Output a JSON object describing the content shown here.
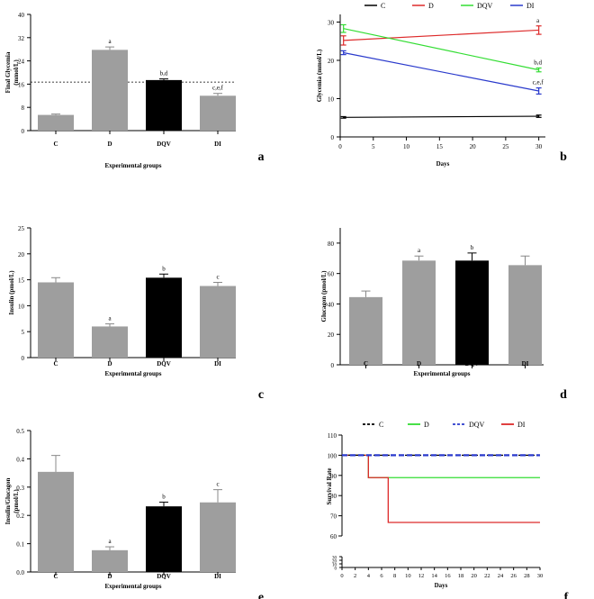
{
  "chart_data": [
    {
      "panel": "a",
      "type": "bar",
      "categories": [
        "C",
        "D",
        "DQV",
        "DI"
      ],
      "values": [
        5.4,
        27.8,
        17.4,
        12.0
      ],
      "errors": [
        0.3,
        1.0,
        0.4,
        0.8
      ],
      "bar_colors": [
        "#9e9e9e",
        "#9e9e9e",
        "#000000",
        "#9e9e9e"
      ],
      "sig_labels": [
        "",
        "a",
        "b,d",
        "c,e,f"
      ],
      "ylabel_lines": [
        "Final Glycemia",
        "(mmol/L)"
      ],
      "xlabel": "Experimental groups",
      "ylim": [
        0,
        40
      ],
      "yticks": [
        0,
        8,
        16,
        24,
        32,
        40
      ],
      "reference_line": 16.7
    },
    {
      "panel": "b",
      "type": "line",
      "legend": [
        "C",
        "D",
        "DQV",
        "DI"
      ],
      "series": [
        {
          "name": "C",
          "color": "#000000",
          "x": [
            0.5,
            30
          ],
          "y": [
            5.1,
            5.4
          ],
          "err": [
            0.2,
            0.3
          ],
          "label": ""
        },
        {
          "name": "D",
          "color": "#dd2a2a",
          "x": [
            0.5,
            30
          ],
          "y": [
            25.2,
            27.9
          ],
          "err": [
            1.2,
            1.1
          ],
          "label": "a"
        },
        {
          "name": "DQV",
          "color": "#33dd33",
          "x": [
            0.5,
            30
          ],
          "y": [
            28.3,
            17.5
          ],
          "err": [
            1.0,
            0.5
          ],
          "label": "b,d"
        },
        {
          "name": "DI",
          "color": "#2a3acc",
          "x": [
            0.5,
            30
          ],
          "y": [
            22.0,
            12.0
          ],
          "err": [
            0.5,
            0.8
          ],
          "label": "c,e,f"
        }
      ],
      "ylabel": "Glycemia (mmol/L)",
      "xlabel": "Days",
      "xlim": [
        0,
        31
      ],
      "ylim": [
        0,
        32
      ],
      "xticks": [
        0,
        5,
        10,
        15,
        20,
        25,
        30
      ],
      "yticks": [
        0,
        10,
        20,
        30
      ]
    },
    {
      "panel": "c",
      "type": "bar",
      "categories": [
        "C",
        "D",
        "DQV",
        "DI"
      ],
      "values": [
        14.5,
        6.0,
        15.4,
        13.8
      ],
      "errors": [
        0.9,
        0.5,
        0.7,
        0.7
      ],
      "bar_colors": [
        "#9e9e9e",
        "#9e9e9e",
        "#000000",
        "#9e9e9e"
      ],
      "sig_labels": [
        "",
        "a",
        "b",
        "c"
      ],
      "ylabel_lines": [
        "Insulin (pmol/L)"
      ],
      "xlabel": "Experimental groups",
      "ylim": [
        0,
        25
      ],
      "yticks": [
        0,
        5,
        10,
        15,
        20,
        25
      ]
    },
    {
      "panel": "d",
      "type": "bar",
      "categories": [
        "C",
        "D",
        "DQV",
        "DI"
      ],
      "values": [
        44.5,
        68.5,
        68.5,
        65.5
      ],
      "errors": [
        4.0,
        3.0,
        5.0,
        6.0
      ],
      "bar_colors": [
        "#9e9e9e",
        "#9e9e9e",
        "#000000",
        "#9e9e9e"
      ],
      "sig_labels": [
        "",
        "a",
        "b",
        ""
      ],
      "ylabel_lines": [
        "Glucagon (pmol/L)"
      ],
      "xlabel": "Experimental groups",
      "ylim": [
        0,
        90
      ],
      "yticks": [
        0,
        20,
        40,
        60,
        80
      ]
    },
    {
      "panel": "e",
      "type": "bar",
      "categories": [
        "C",
        "D",
        "DQV",
        "DI"
      ],
      "values": [
        0.354,
        0.077,
        0.232,
        0.246
      ],
      "errors": [
        0.058,
        0.012,
        0.015,
        0.045
      ],
      "bar_colors": [
        "#9e9e9e",
        "#9e9e9e",
        "#000000",
        "#9e9e9e"
      ],
      "sig_labels": [
        "",
        "a",
        "b",
        "c"
      ],
      "ylabel_lines": [
        "Insulin/Glucagon",
        "(pmol/L)"
      ],
      "xlabel": "Experimental groups",
      "ylim": [
        0,
        0.5
      ],
      "yticks": [
        0.0,
        0.1,
        0.2,
        0.3,
        0.4,
        0.5
      ],
      "ytick_labels": [
        "0.0",
        "0.1",
        "0.2",
        "0.3",
        "0.4",
        "0.5"
      ]
    },
    {
      "panel": "f",
      "type": "line",
      "subtype": "step",
      "legend": [
        "C",
        "D",
        "DQV",
        "DI"
      ],
      "series": [
        {
          "name": "C",
          "color": "#000000",
          "dash": "4,3",
          "steps": [
            [
              0,
              100
            ],
            [
              30,
              100
            ]
          ]
        },
        {
          "name": "D",
          "color": "#33dd33",
          "dash": "",
          "steps": [
            [
              0,
              100
            ],
            [
              4,
              100
            ],
            [
              4,
              88.9
            ],
            [
              30,
              88.9
            ]
          ]
        },
        {
          "name": "DQV",
          "color": "#2a3acc",
          "dash": "6,3",
          "steps": [
            [
              0,
              100
            ],
            [
              30,
              100
            ]
          ]
        },
        {
          "name": "DI",
          "color": "#dd2a2a",
          "dash": "",
          "steps": [
            [
              0,
              100
            ],
            [
              4,
              100
            ],
            [
              4,
              88.9
            ],
            [
              7,
              88.9
            ],
            [
              7,
              66.7
            ],
            [
              30,
              66.7
            ]
          ]
        }
      ],
      "ylabel": "Survival Rate",
      "xlabel": "Days",
      "xlim": [
        0,
        30
      ],
      "ylim_upper": [
        60,
        110
      ],
      "ylim_lower": [
        0,
        30
      ],
      "xticks": [
        0,
        2,
        4,
        6,
        8,
        10,
        12,
        14,
        16,
        18,
        20,
        22,
        24,
        26,
        28,
        30
      ],
      "yticks_upper": [
        60,
        70,
        80,
        90,
        100,
        110
      ],
      "yticks_lower": [
        0,
        10,
        20,
        30
      ]
    }
  ]
}
